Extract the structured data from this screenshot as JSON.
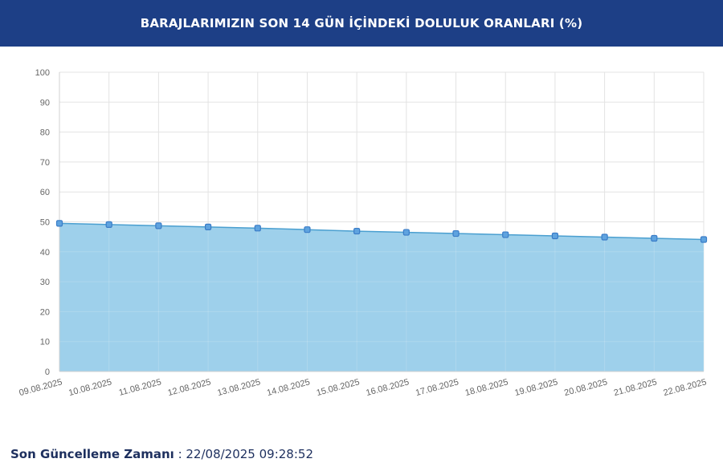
{
  "header": {
    "title": "BARAJLARIMIZIN SON 14 GÜN İÇİNDEKİ DOLULUK ORANLARI (%)"
  },
  "footer": {
    "label": "Son Güncelleme Zamanı",
    "separator": " : ",
    "timestamp": "22/08/2025 09:28:52"
  },
  "colors": {
    "header_bg": "#1d3f86",
    "area_fill": "#99cdea",
    "line": "#4a9fd0",
    "marker": "#3a7cc7"
  },
  "chart_data": {
    "type": "area",
    "title": "",
    "xlabel": "",
    "ylabel": "",
    "ylim": [
      0,
      100
    ],
    "yticks": [
      0,
      10,
      20,
      30,
      40,
      50,
      60,
      70,
      80,
      90,
      100
    ],
    "grid": true,
    "x": [
      "09.08.2025",
      "10.08.2025",
      "11.08.2025",
      "12.08.2025",
      "13.08.2025",
      "14.08.2025",
      "15.08.2025",
      "16.08.2025",
      "17.08.2025",
      "18.08.2025",
      "19.08.2025",
      "20.08.2025",
      "21.08.2025",
      "22.08.2025"
    ],
    "series": [
      {
        "values": [
          49.5,
          49.1,
          48.7,
          48.3,
          47.9,
          47.4,
          46.9,
          46.5,
          46.1,
          45.7,
          45.3,
          44.9,
          44.5,
          44.1
        ]
      }
    ]
  }
}
